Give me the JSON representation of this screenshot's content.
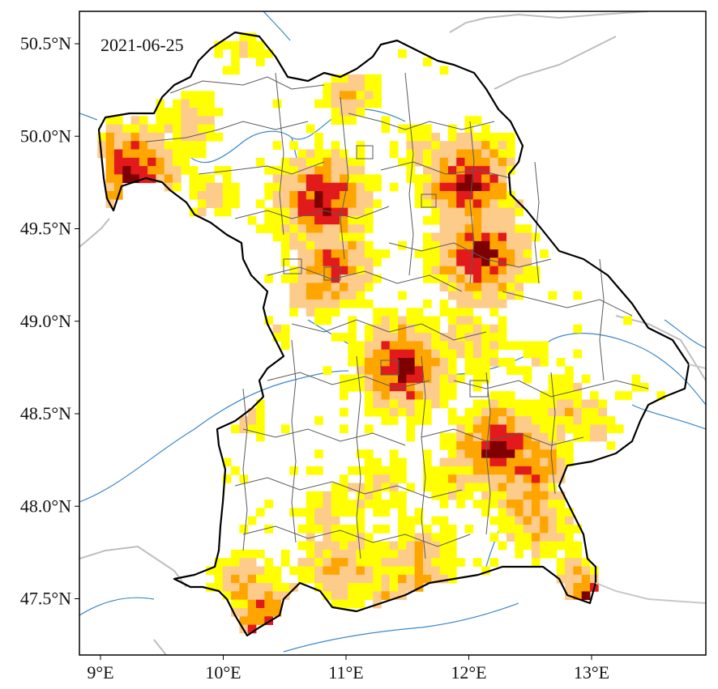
{
  "date_label": "2021-06-25",
  "axes": {
    "lon_ticks": [
      {
        "value": 9,
        "label": "9°E"
      },
      {
        "value": 10,
        "label": "10°E"
      },
      {
        "value": 11,
        "label": "11°E"
      },
      {
        "value": 12,
        "label": "12°E"
      },
      {
        "value": 13,
        "label": "13°E"
      }
    ],
    "lat_ticks": [
      {
        "value": 50.5,
        "label": "50.5°N"
      },
      {
        "value": 50.0,
        "label": "50.0°N"
      },
      {
        "value": 49.5,
        "label": "49.5°N"
      },
      {
        "value": 49.0,
        "label": "49.0°N"
      },
      {
        "value": 48.5,
        "label": "48.5°N"
      },
      {
        "value": 48.0,
        "label": "48.0°N"
      },
      {
        "value": 47.5,
        "label": "47.5°N"
      }
    ],
    "lon_range": [
      8.83,
      13.97
    ],
    "lat_range": [
      47.17,
      50.7
    ]
  },
  "colors": {
    "class1": "#ffff00",
    "class2": "#fdcc8a",
    "class3": "#ffa500",
    "class4": "#e31a1c",
    "class5": "#7f0000",
    "border": "#000000",
    "districts": "#555555",
    "rivers": "#1f78b4",
    "neighbors": "#bbbbbb"
  },
  "chart_data": {
    "type": "heatmap",
    "date": "2021-06-25",
    "xlim": [
      8.83,
      13.97
    ],
    "ylim": [
      47.17,
      50.7
    ],
    "hotspots": [
      {
        "lon": 10.8,
        "lat": 49.65,
        "level": 5
      },
      {
        "lon": 12.0,
        "lat": 49.75,
        "level": 5
      },
      {
        "lon": 12.1,
        "lat": 49.35,
        "level": 5
      },
      {
        "lon": 9.25,
        "lat": 49.8,
        "level": 5
      },
      {
        "lon": 11.45,
        "lat": 48.75,
        "level": 5
      },
      {
        "lon": 12.25,
        "lat": 48.3,
        "level": 5
      },
      {
        "lon": 12.5,
        "lat": 48.2,
        "level": 4
      },
      {
        "lon": 12.95,
        "lat": 47.5,
        "level": 4
      },
      {
        "lon": 10.35,
        "lat": 47.4,
        "level": 4
      },
      {
        "lon": 10.9,
        "lat": 49.3,
        "level": 4
      },
      {
        "lon": 12.6,
        "lat": 47.9,
        "level": 3
      },
      {
        "lon": 11.6,
        "lat": 47.6,
        "level": 3
      },
      {
        "lon": 12.5,
        "lat": 48.8,
        "level": 1
      },
      {
        "lon": 11.1,
        "lat": 47.9,
        "level": 1
      }
    ]
  }
}
